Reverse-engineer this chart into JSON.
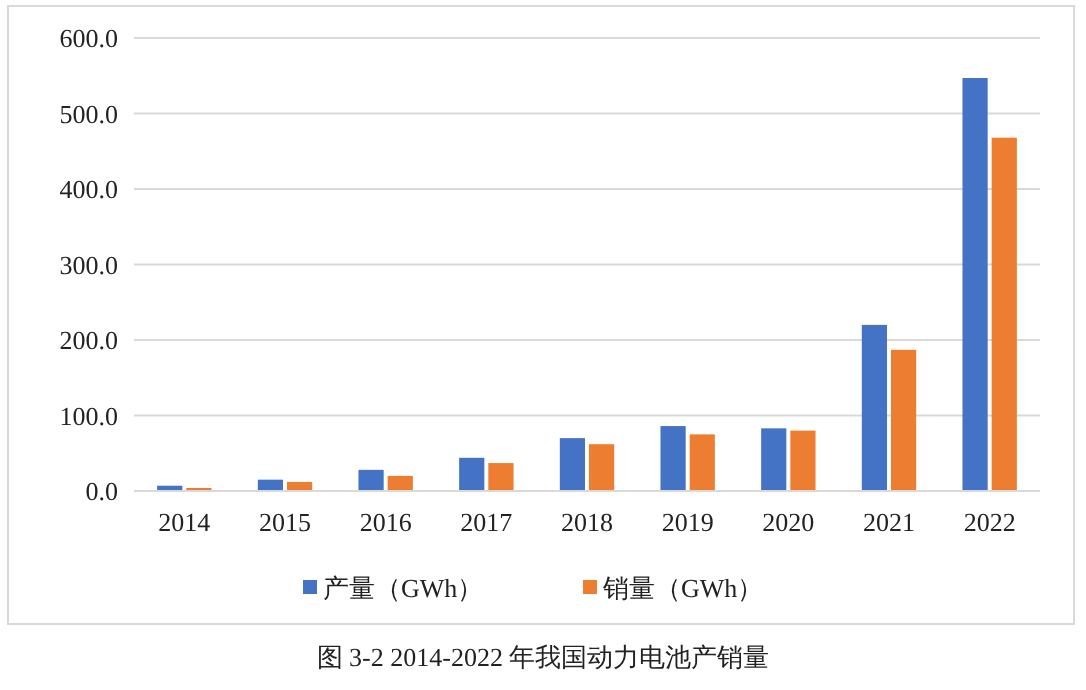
{
  "chart_data": {
    "type": "bar",
    "categories": [
      "2014",
      "2015",
      "2016",
      "2017",
      "2018",
      "2019",
      "2020",
      "2021",
      "2022"
    ],
    "series": [
      {
        "name": "产量（GWh）",
        "color": "#4472c4",
        "values": [
          7,
          15,
          28,
          44,
          70,
          86,
          83,
          220,
          547
        ]
      },
      {
        "name": "销量（GWh）",
        "color": "#ed7d31",
        "values": [
          4,
          12,
          20,
          37,
          62,
          75,
          80,
          187,
          468
        ]
      }
    ],
    "ylim": [
      0,
      600
    ],
    "yticks": [
      {
        "value": 0,
        "label": "0.0"
      },
      {
        "value": 100,
        "label": "100.0"
      },
      {
        "value": 200,
        "label": "200.0"
      },
      {
        "value": 300,
        "label": "300.0"
      },
      {
        "value": 400,
        "label": "400.0"
      },
      {
        "value": 500,
        "label": "500.0"
      },
      {
        "value": 600,
        "label": "600.0"
      }
    ],
    "grid": "y",
    "legend": "bottom",
    "annotations": [
      "图 3-2 2014-2022 年我国动力电池产销量"
    ]
  }
}
